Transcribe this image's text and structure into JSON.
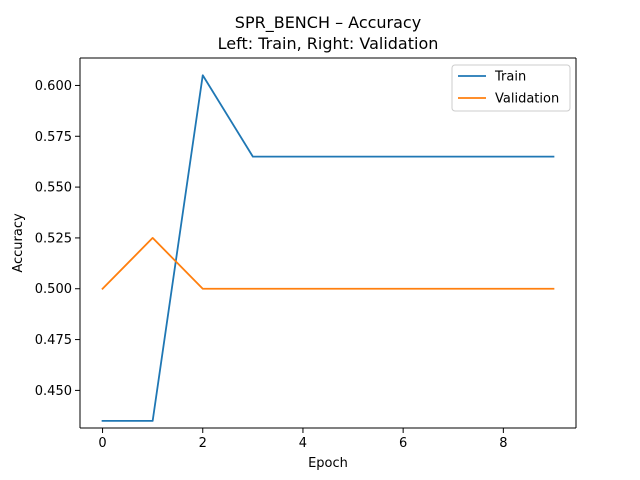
{
  "chart_data": {
    "type": "line",
    "title": "SPR_BENCH – Accuracy",
    "subtitle": "Left: Train, Right: Validation",
    "xlabel": "Epoch",
    "ylabel": "Accuracy",
    "x": [
      0,
      1,
      2,
      3,
      4,
      5,
      6,
      7,
      8,
      9
    ],
    "xlim": [
      -0.45,
      9.45
    ],
    "ylim": [
      0.4315,
      0.6135
    ],
    "xticks": [
      0,
      2,
      4,
      6,
      8
    ],
    "yticks": [
      0.45,
      0.475,
      0.5,
      0.525,
      0.55,
      0.575,
      0.6
    ],
    "grid": false,
    "legend_position": "top-right",
    "series": [
      {
        "name": "Train",
        "color": "#1f77b4",
        "values": [
          0.435,
          0.435,
          0.605,
          0.565,
          0.565,
          0.565,
          0.565,
          0.565,
          0.565,
          0.565
        ]
      },
      {
        "name": "Validation",
        "color": "#ff7f0e",
        "values": [
          0.5,
          0.525,
          0.5,
          0.5,
          0.5,
          0.5,
          0.5,
          0.5,
          0.5,
          0.5
        ]
      }
    ]
  }
}
